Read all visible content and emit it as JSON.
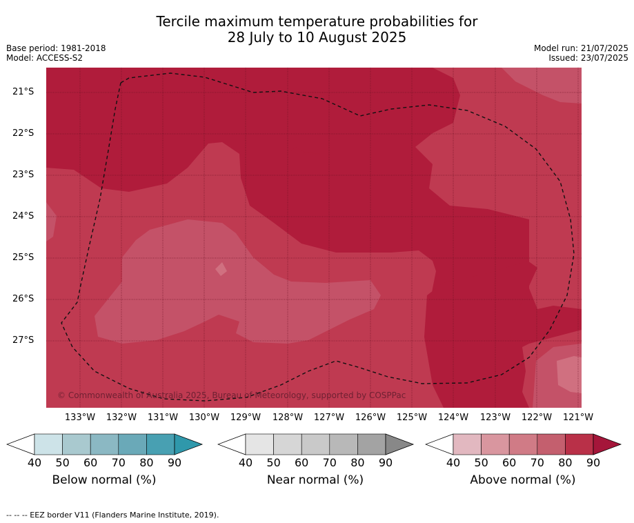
{
  "title_line1": "Tercile maximum temperature probabilities for",
  "title_line2": "28 July to 10 August 2025",
  "base_period": "Base period: 1981-2018",
  "model": "Model: ACCESS-S2",
  "model_run": "Model run: 21/07/2025",
  "issued": "Issued: 23/07/2025",
  "copyright": "© Commonwealth of Australia 2025, Bureau of Meteorology, supported by COSPPac",
  "lat_labels": [
    "21°S",
    "22°S",
    "23°S",
    "24°S",
    "25°S",
    "26°S",
    "27°S"
  ],
  "lon_labels": [
    "133°W",
    "132°W",
    "131°W",
    "130°W",
    "129°W",
    "128°W",
    "127°W",
    "126°W",
    "125°W",
    "124°W",
    "123°W",
    "122°W",
    "121°W"
  ],
  "colorbars": [
    {
      "label": "Below normal (%)",
      "ticks": [
        "40",
        "50",
        "60",
        "70",
        "80",
        "90"
      ],
      "colors": [
        "#cde3e8",
        "#a9c9cf",
        "#8bb8c3",
        "#6aa9b8",
        "#48a0b2"
      ],
      "extend_color": "#2f98ab"
    },
    {
      "label": "Near normal (%)",
      "ticks": [
        "40",
        "50",
        "60",
        "70",
        "80",
        "90"
      ],
      "colors": [
        "#e5e5e5",
        "#d6d6d6",
        "#c9c9c9",
        "#b8b8b8",
        "#a3a3a3"
      ],
      "extend_color": "#888888"
    },
    {
      "label": "Above normal (%)",
      "ticks": [
        "40",
        "50",
        "60",
        "70",
        "80",
        "90"
      ],
      "colors": [
        "#e2b8c0",
        "#d9969f",
        "#d07b86",
        "#c45f6e",
        "#b93048"
      ],
      "extend_color": "#a5163a"
    }
  ],
  "map_colors": {
    "dark": "#b01c3b",
    "mid": "#bf3a51",
    "light": "#c45268",
    "lighter": "#d07080"
  },
  "footer": "-- -- -- EEZ border V11 (Flanders Marine Institute, 2019)."
}
